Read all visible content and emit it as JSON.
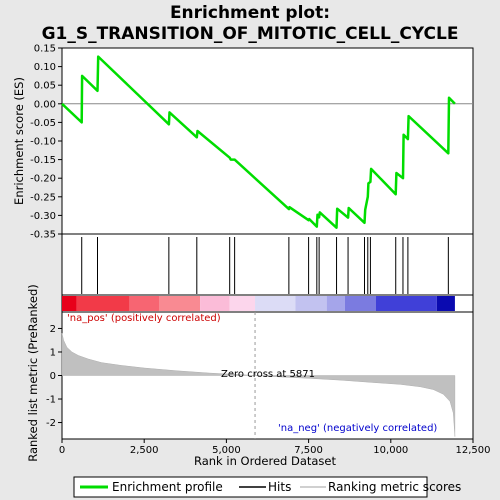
{
  "chart_data": {
    "type": "line",
    "title_line1": "Enrichment plot:",
    "title_line2": "G1_S_TRANSITION_OF_MITOTIC_CELL_CYCLE",
    "es_panel": {
      "ylabel": "Enrichment score (ES)",
      "ylim": [
        -0.35,
        0.15
      ],
      "yticks": [
        "0.15",
        "0.10",
        "0.05",
        "0.00",
        "-0.05",
        "-0.10",
        "-0.15",
        "-0.20",
        "-0.25",
        "-0.30",
        "-0.35"
      ],
      "ytick_values": [
        0.15,
        0.1,
        0.05,
        0.0,
        -0.05,
        -0.1,
        -0.15,
        -0.2,
        -0.25,
        -0.3,
        -0.35
      ],
      "series_name": "Enrichment profile",
      "color": "#00dd00",
      "x": [
        0,
        600,
        610,
        1080,
        1100,
        3250,
        3270,
        4100,
        4120,
        5100,
        5130,
        5250,
        6900,
        6920,
        7500,
        7520,
        7750,
        7770,
        7820,
        7840,
        8350,
        8370,
        8700,
        8720,
        9200,
        9220,
        9300,
        9320,
        9380,
        9400,
        10150,
        10170,
        10370,
        10390,
        10520,
        10540,
        11750,
        11770,
        11950
      ],
      "y": [
        0.0,
        -0.05,
        0.075,
        0.035,
        0.127,
        -0.055,
        -0.023,
        -0.09,
        -0.073,
        -0.145,
        -0.15,
        -0.15,
        -0.283,
        -0.278,
        -0.313,
        -0.31,
        -0.33,
        -0.298,
        -0.305,
        -0.292,
        -0.333,
        -0.282,
        -0.306,
        -0.28,
        -0.32,
        -0.285,
        -0.25,
        -0.214,
        -0.21,
        -0.175,
        -0.243,
        -0.186,
        -0.2,
        -0.083,
        -0.095,
        -0.033,
        -0.133,
        0.016,
        0.0
      ],
      "hits": [
        600,
        1080,
        3250,
        4100,
        5100,
        5250,
        6900,
        7500,
        7750,
        7820,
        8350,
        8700,
        9200,
        9300,
        9380,
        10150,
        10370,
        10520,
        11750
      ]
    },
    "metric_panel": {
      "ylabel": "Ranked list metric (PreRanked)",
      "ylim": [
        -2.7,
        2.7
      ],
      "yticks": [
        "2",
        "1",
        "0",
        "-1",
        "-2"
      ],
      "ytick_values": [
        2,
        1,
        0,
        -1,
        -2
      ],
      "series_name": "Ranking metric scores",
      "color": "#c0c0c0",
      "x": [
        0,
        50,
        150,
        300,
        500,
        800,
        1200,
        1800,
        2500,
        3500,
        4500,
        5500,
        5871,
        6500,
        7500,
        8500,
        9500,
        10300,
        10900,
        11300,
        11600,
        11800,
        11900,
        11950
      ],
      "y": [
        1.8,
        1.5,
        1.2,
        1.0,
        0.85,
        0.7,
        0.55,
        0.43,
        0.32,
        0.2,
        0.1,
        0.03,
        0.0,
        -0.05,
        -0.12,
        -0.2,
        -0.3,
        -0.38,
        -0.48,
        -0.6,
        -0.8,
        -1.1,
        -1.6,
        -2.6
      ],
      "pos_label": "'na_pos' (positively correlated)",
      "neg_label": "'na_neg' (negatively correlated)",
      "zero_cross_label": "Zero cross at 5871",
      "zero_cross": 5871
    },
    "xaxis": {
      "label": "Rank in Ordered Dataset",
      "xlim": [
        0,
        12500
      ],
      "n_genes": 11950,
      "ticks": [
        "0",
        "2,500",
        "5,000",
        "7,500",
        "10,000",
        "12,500"
      ],
      "tick_values": [
        0,
        2500,
        5000,
        7500,
        10000,
        12500
      ]
    },
    "heat_segments": [
      {
        "start": 0,
        "end": 450,
        "color": "#e8001a"
      },
      {
        "start": 450,
        "end": 2050,
        "color": "#f23a48"
      },
      {
        "start": 2050,
        "end": 2950,
        "color": "#f76572"
      },
      {
        "start": 2950,
        "end": 4200,
        "color": "#f98a92"
      },
      {
        "start": 4200,
        "end": 5100,
        "color": "#fbbcd8"
      },
      {
        "start": 5100,
        "end": 5871,
        "color": "#fcd6ec"
      },
      {
        "start": 5871,
        "end": 7100,
        "color": "#dcdcf6"
      },
      {
        "start": 7100,
        "end": 8050,
        "color": "#c2c2f0"
      },
      {
        "start": 8050,
        "end": 8600,
        "color": "#a5a5ea"
      },
      {
        "start": 8600,
        "end": 9550,
        "color": "#7b7be0"
      },
      {
        "start": 9550,
        "end": 11400,
        "color": "#4040d8"
      },
      {
        "start": 11400,
        "end": 11950,
        "color": "#0a0ab0"
      }
    ],
    "legend": [
      {
        "label": "Enrichment profile",
        "kind": "line",
        "color": "#00dd00"
      },
      {
        "label": "Hits",
        "kind": "hit",
        "color": "#000000"
      },
      {
        "label": "Ranking metric scores",
        "kind": "metric",
        "color": "#c0c0c0"
      }
    ]
  }
}
